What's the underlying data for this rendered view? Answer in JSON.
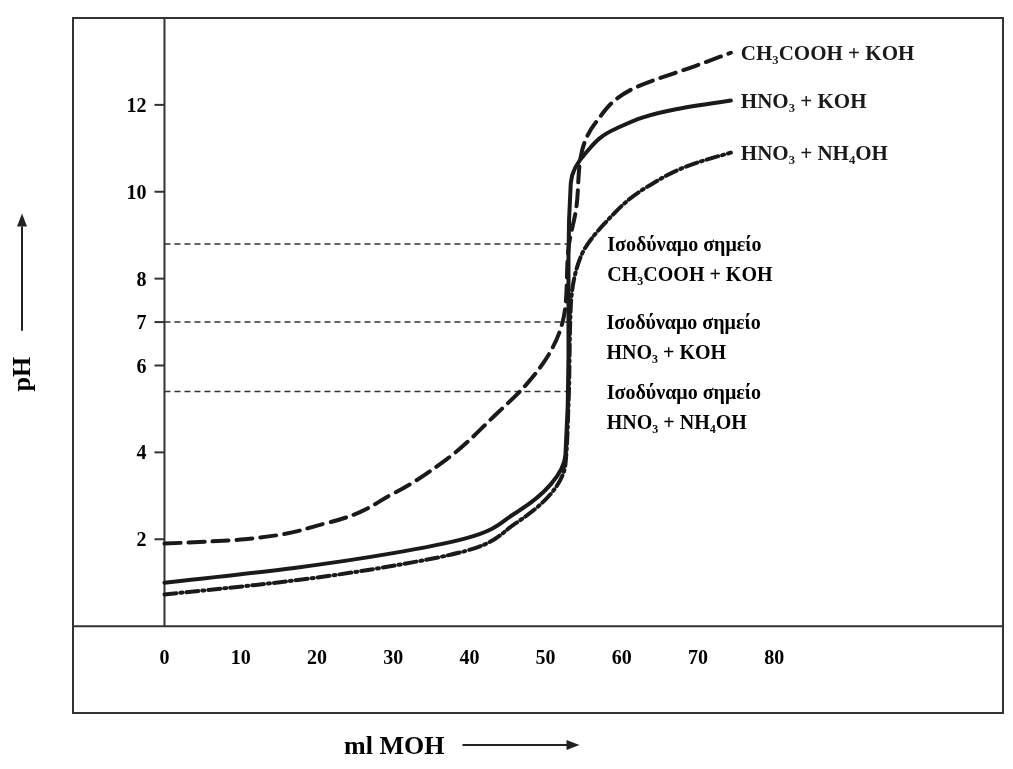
{
  "chart_data": {
    "type": "line",
    "xlabel": "ml MOH",
    "ylabel": "pH",
    "xlim": [
      -12,
      110
    ],
    "ylim": [
      -2,
      14
    ],
    "xticks": [
      0,
      10,
      20,
      30,
      40,
      50,
      60,
      70,
      80
    ],
    "yticks": [
      2,
      4,
      6,
      7,
      8,
      10,
      12
    ],
    "grid": false,
    "legend": false,
    "series": [
      {
        "name": "CH₃COOH + KOH",
        "color": "#1a1a1a",
        "line_style": "dashed",
        "x": [
          0,
          10.5,
          21,
          30,
          37,
          43.4,
          47.4,
          50.7,
          52.6,
          53,
          54,
          54.6,
          56.6,
          61.8,
          69.7,
          74.3
        ],
        "values": [
          1.9,
          2.0,
          2.36,
          3.05,
          3.84,
          4.86,
          5.55,
          6.34,
          7.36,
          8.7,
          9.6,
          10.8,
          11.6,
          12.4,
          12.9,
          13.2
        ]
      },
      {
        "name": "HNO₃ + KOH",
        "color": "#1a1a1a",
        "line_style": "solid",
        "x": [
          0,
          17,
          30,
          39.5,
          46,
          50.7,
          52.6,
          53,
          53,
          53.3,
          55.3,
          59.2,
          67.1,
          74.3
        ],
        "values": [
          1.0,
          1.34,
          1.68,
          2.02,
          2.6,
          3.27,
          3.95,
          6.2,
          8.5,
          10.2,
          10.9,
          11.45,
          11.9,
          12.1
        ]
      },
      {
        "name": "HNO₃ + NH₄OH",
        "color": "#1a1a1a",
        "line_style": "dotted",
        "x": [
          0,
          17,
          30,
          39.5,
          46,
          50.7,
          52.6,
          53,
          53.3,
          54.6,
          57.9,
          63.2,
          69.7,
          74.3
        ],
        "values": [
          0.73,
          1.05,
          1.39,
          1.73,
          2.36,
          3.05,
          3.73,
          5.1,
          7.36,
          8.5,
          9.3,
          10.1,
          10.66,
          10.9
        ]
      }
    ],
    "ref_lines": [
      {
        "axis": "y",
        "value": 8.8,
        "label": "Ισοδύναμο σημείο\nCH₃COOH + KOH",
        "line_style": "dashed"
      },
      {
        "axis": "y",
        "value": 7,
        "label": "Ισοδύναμο σημείο\nHNO₃ + KOH",
        "line_style": "dashed"
      },
      {
        "axis": "y",
        "value": 5.4,
        "label": "Ισοδύναμο σημείο\nHNO₃ + NH₄OH",
        "line_style": "dashed"
      }
    ]
  }
}
